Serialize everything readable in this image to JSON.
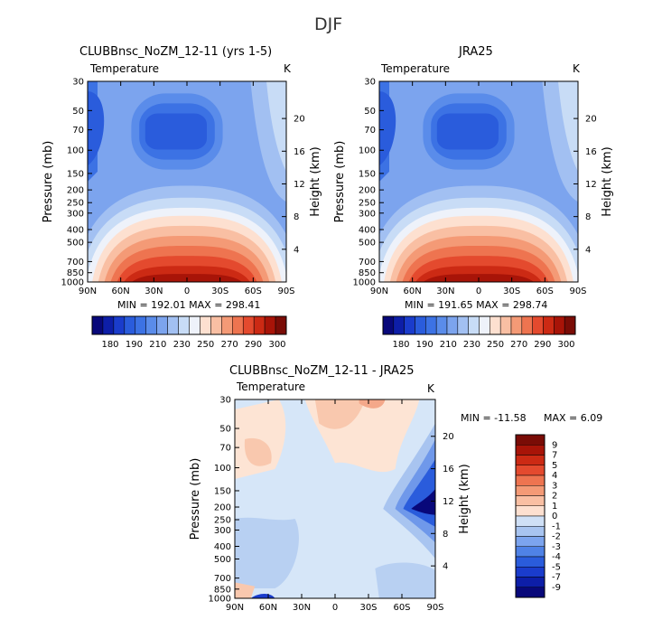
{
  "figure": {
    "title": "DJF"
  },
  "chart_data": [
    {
      "type": "heatmap",
      "title": "CLUBBnsc_NoZM_12-11 (yrs 1-5)",
      "subtitle_left": "Temperature",
      "units": "K",
      "ylabel": "Pressure (mb)",
      "ylabel_right": "Height (km)",
      "x_ticks": [
        "90N",
        "60N",
        "30N",
        "0",
        "30S",
        "60S",
        "90S"
      ],
      "y_ticks": [
        "30",
        "50",
        "70",
        "100",
        "150",
        "200",
        "250",
        "300",
        "400",
        "500",
        "700",
        "850",
        "1000"
      ],
      "y2_ticks": [
        "20",
        "16",
        "12",
        "8",
        "4"
      ],
      "stats": "MIN = 192.01   MAX = 298.41",
      "min": 192.01,
      "max": 298.41,
      "colorbar_labels": [
        "180",
        "190",
        "210",
        "230",
        "250",
        "270",
        "290",
        "300"
      ]
    },
    {
      "type": "heatmap",
      "title": "JRA25",
      "subtitle_left": "Temperature",
      "units": "K",
      "ylabel": "Pressure (mb)",
      "ylabel_right": "Height (km)",
      "x_ticks": [
        "90N",
        "60N",
        "30N",
        "0",
        "30S",
        "60S",
        "90S"
      ],
      "y_ticks": [
        "30",
        "50",
        "70",
        "100",
        "150",
        "200",
        "250",
        "300",
        "400",
        "500",
        "700",
        "850",
        "1000"
      ],
      "y2_ticks": [
        "20",
        "16",
        "12",
        "8",
        "4"
      ],
      "stats": "MIN = 191.65   MAX = 298.74",
      "min": 191.65,
      "max": 298.74,
      "colorbar_labels": [
        "180",
        "190",
        "210",
        "230",
        "250",
        "270",
        "290",
        "300"
      ]
    },
    {
      "type": "heatmap",
      "title": "CLUBBnsc_NoZM_12-11 - JRA25",
      "subtitle_left": "Temperature",
      "units": "K",
      "ylabel": "Pressure (mb)",
      "ylabel_right": "Height (km)",
      "x_ticks": [
        "90N",
        "60N",
        "30N",
        "0",
        "30S",
        "60S",
        "90S"
      ],
      "y_ticks": [
        "30",
        "50",
        "70",
        "100",
        "150",
        "200",
        "250",
        "300",
        "400",
        "500",
        "700",
        "850",
        "1000"
      ],
      "y2_ticks": [
        "20",
        "16",
        "12",
        "8",
        "4"
      ],
      "stats_min": "MIN = -11.58",
      "stats_max": "MAX =    6.09",
      "min": -11.58,
      "max": 6.09,
      "colorbar_labels": [
        "9",
        "7",
        "5",
        "4",
        "3",
        "2",
        "1",
        "0",
        "-1",
        "-2",
        "-3",
        "-4",
        "-5",
        "-7",
        "-9"
      ]
    }
  ],
  "colors": {
    "temp_scale": [
      "#08087a",
      "#0d1ea8",
      "#1a3ccc",
      "#2a5cdc",
      "#3c72e4",
      "#5a8cea",
      "#7ca4ee",
      "#a2c0f2",
      "#c8dcf6",
      "#eef2fa",
      "#fde0d0",
      "#f9bfa3",
      "#f49a76",
      "#ee7450",
      "#e44a2e",
      "#cc2a14",
      "#a81408",
      "#7a0c06"
    ],
    "diff_scale": [
      "#7a0c06",
      "#a81408",
      "#cc2a14",
      "#e44a2e",
      "#ee7450",
      "#f49a76",
      "#f9bfa3",
      "#fde0d0",
      "#cfe0f6",
      "#a8c4f0",
      "#7ca4ee",
      "#4f82e6",
      "#2a5cdc",
      "#1a3ccc",
      "#0d1ea8",
      "#08087a"
    ]
  }
}
